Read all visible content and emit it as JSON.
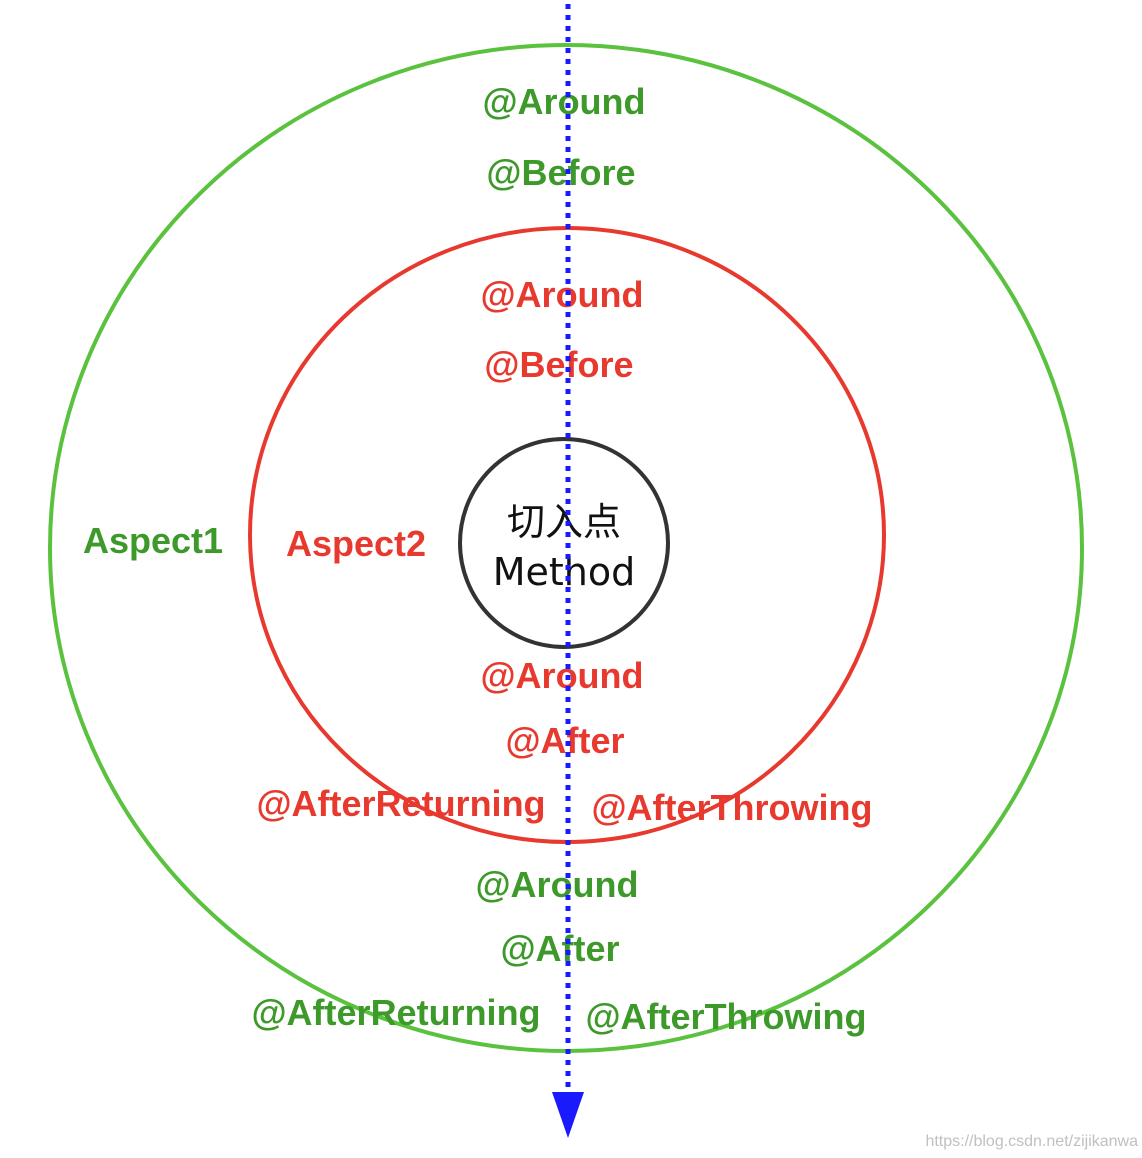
{
  "colors": {
    "outer_aspect": "#5ac23f",
    "outer_text": "#3d9a2a",
    "inner_aspect": "#e8392f",
    "inner_text": "#e8392f",
    "method": "#333333",
    "flow_arrow": "#1a1aff",
    "watermark": "#c0c0c0"
  },
  "aspect1": {
    "label": "Aspect1",
    "before": [
      "@Around",
      "@Before"
    ],
    "after": [
      "@Around",
      "@After"
    ],
    "after_returning": "@AfterReturning",
    "after_throwing": "@AfterThrowing"
  },
  "aspect2": {
    "label": "Aspect2",
    "before": [
      "@Around",
      "@Before"
    ],
    "after": [
      "@Around",
      "@After"
    ],
    "after_returning": "@AfterReturning",
    "after_throwing": "@AfterThrowing"
  },
  "method": {
    "title": "切入点",
    "name": "Method"
  },
  "flow": {
    "direction_icon": "arrow-down-icon"
  },
  "watermark": "https://blog.csdn.net/zijikanwa"
}
